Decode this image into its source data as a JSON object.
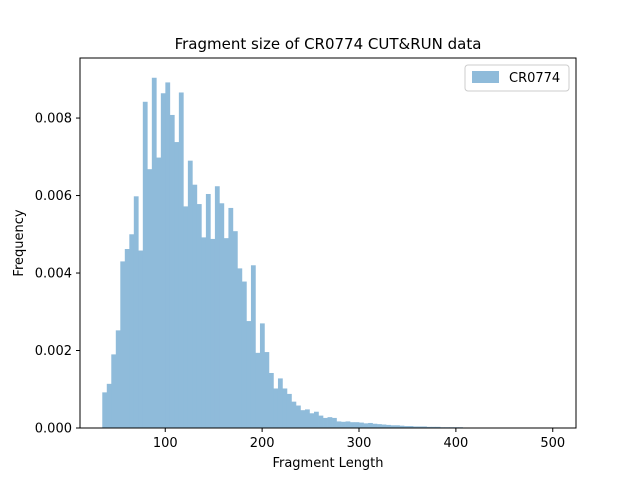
{
  "chart_data": {
    "type": "bar",
    "title": "Fragment size of CR0774 CUT&RUN data",
    "xlabel": "Fragment Length",
    "ylabel": "Frequency",
    "xlim": [
      12,
      524
    ],
    "ylim": [
      0,
      0.00955
    ],
    "xticks": [
      100,
      200,
      300,
      400,
      500
    ],
    "xtick_labels": [
      "100",
      "200",
      "300",
      "400",
      "500"
    ],
    "yticks": [
      0,
      0.002,
      0.004,
      0.006,
      0.008
    ],
    "ytick_labels": [
      "0.000",
      "0.002",
      "0.004",
      "0.006",
      "0.008"
    ],
    "grid": false,
    "legend_position": "top-right",
    "color": "#8fbbda",
    "bin_start": 35,
    "bin_width": 4.65,
    "series": [
      {
        "name": "CR0774",
        "values": [
          0.00092,
          0.00114,
          0.0019,
          0.00252,
          0.0043,
          0.00462,
          0.005,
          0.00598,
          0.00458,
          0.00842,
          0.00668,
          0.00904,
          0.00698,
          0.00864,
          0.00892,
          0.00808,
          0.00738,
          0.00866,
          0.00572,
          0.0069,
          0.00628,
          0.00578,
          0.00492,
          0.00604,
          0.00488,
          0.00624,
          0.0058,
          0.0049,
          0.00568,
          0.00508,
          0.00412,
          0.00378,
          0.00276,
          0.0042,
          0.00194,
          0.0027,
          0.00196,
          0.00142,
          0.00102,
          0.00128,
          0.00102,
          0.00088,
          0.00068,
          0.00058,
          0.00046,
          0.00048,
          0.00038,
          0.00042,
          0.00032,
          0.00026,
          0.00028,
          0.00026,
          0.00017,
          0.00016,
          0.00017,
          0.00015,
          0.00015,
          0.00014,
          0.00012,
          0.00013,
          0.00011,
          0.0001,
          9e-05,
          8e-05,
          7e-05,
          7e-05,
          6e-05,
          5e-05,
          5e-05,
          4e-05,
          4e-05,
          4e-05,
          3e-05,
          3e-05,
          3e-05,
          2e-05,
          2e-05,
          2e-05,
          2e-05,
          2e-05,
          1e-05,
          1e-05,
          1e-05,
          1e-05,
          1e-05,
          1e-05,
          1e-05,
          1e-05,
          1e-05,
          1e-05,
          1e-05,
          1e-05,
          1e-05,
          1e-05,
          1e-05,
          1e-05,
          1e-05,
          1e-05,
          1e-05,
          1e-05
        ]
      }
    ]
  }
}
